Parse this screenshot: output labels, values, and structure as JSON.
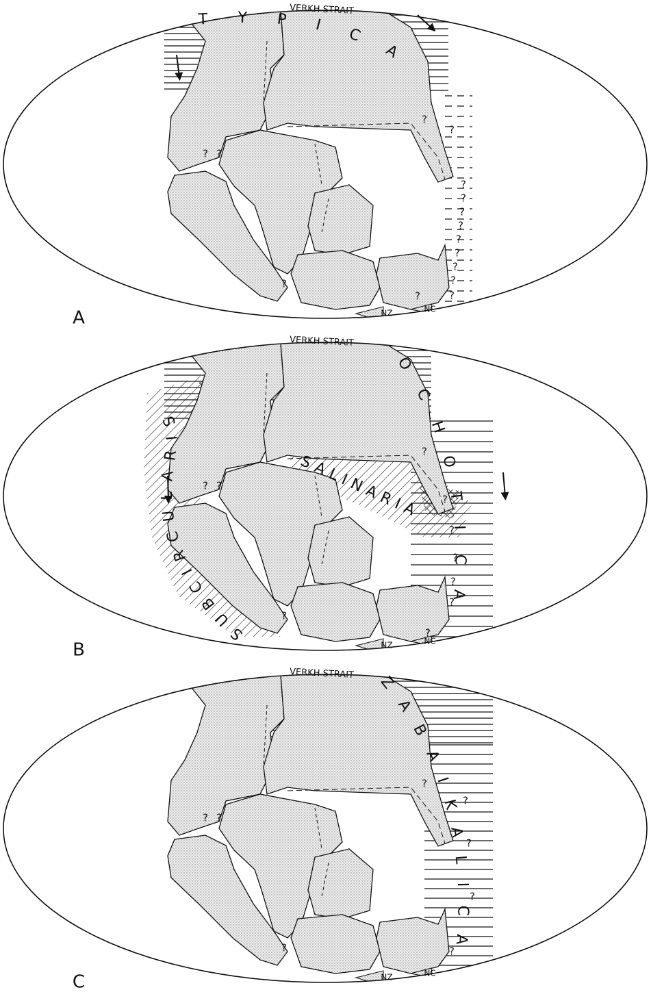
{
  "panels": [
    {
      "label": "A",
      "strait": "VERKH STRAIT",
      "provinces": [
        "TYPICA"
      ],
      "labels": [
        "NZ",
        "NC"
      ],
      "question_marks": [
        "?",
        "?",
        "?",
        "?",
        "?",
        "?",
        "?",
        "?",
        "?",
        "?",
        "?",
        "?",
        "?",
        "?",
        "?"
      ]
    },
    {
      "label": "B",
      "strait": "VERKH STRAIT",
      "provinces": [
        "OCHOTICA",
        "SALINARIA",
        "SUBCIRCULARIS"
      ],
      "labels": [
        "NZ",
        "NC"
      ],
      "question_marks": [
        "?",
        "?",
        "?",
        "?",
        "?",
        "?",
        "?",
        "?",
        "?",
        "?"
      ]
    },
    {
      "label": "C",
      "strait": "VERKH STRAIT",
      "provinces": [
        "ZABAIKALICA"
      ],
      "labels": [
        "NZ",
        "NC"
      ],
      "question_marks": [
        "?",
        "?",
        "?",
        "?",
        "?",
        "?",
        "?",
        "?"
      ]
    }
  ]
}
